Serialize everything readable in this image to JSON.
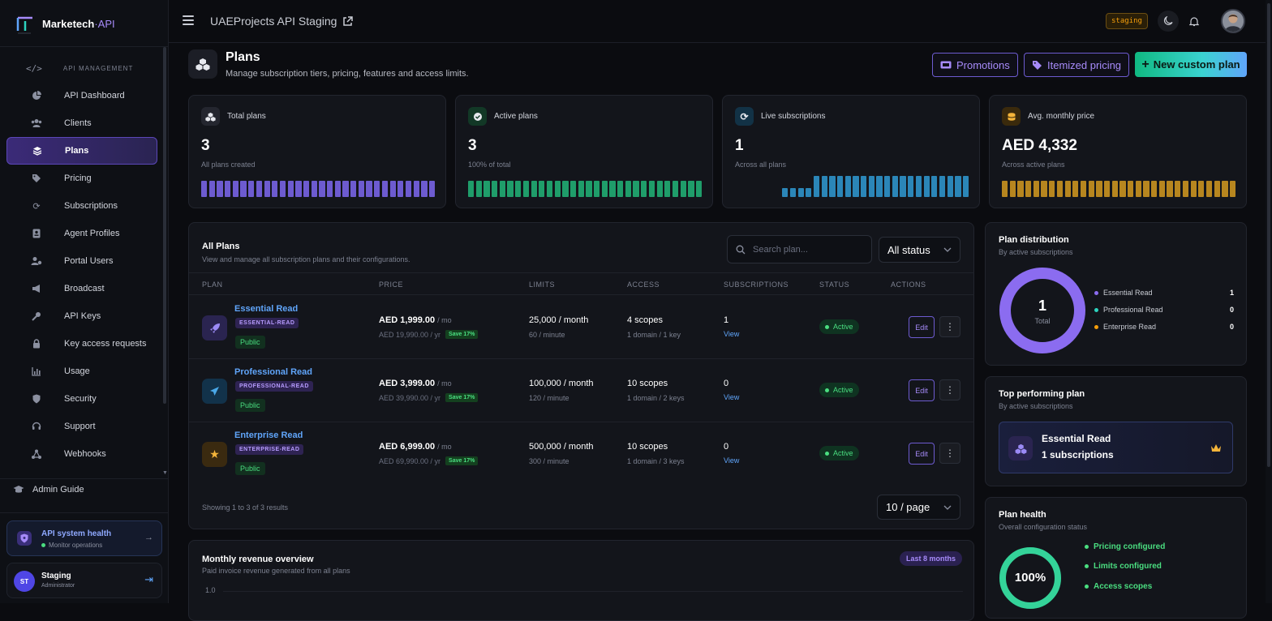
{
  "brand": {
    "name": "Marketech",
    "separator": " · ",
    "api": "API"
  },
  "sidebar": {
    "section_title": "API MANAGEMENT",
    "items": [
      {
        "label": "API Dashboard",
        "icon": "pie-chart-icon"
      },
      {
        "label": "Clients",
        "icon": "users-icon"
      },
      {
        "label": "Plans",
        "icon": "layers-icon",
        "active": true
      },
      {
        "label": "Pricing",
        "icon": "tags-icon"
      },
      {
        "label": "Subscriptions",
        "icon": "refresh-icon"
      },
      {
        "label": "Agent Profiles",
        "icon": "id-card-icon"
      },
      {
        "label": "Portal Users",
        "icon": "user-cog-icon"
      },
      {
        "label": "Broadcast",
        "icon": "megaphone-icon"
      },
      {
        "label": "API Keys",
        "icon": "key-icon"
      },
      {
        "label": "Key access requests",
        "icon": "lock-icon"
      },
      {
        "label": "Usage",
        "icon": "bar-chart-icon"
      },
      {
        "label": "Security",
        "icon": "shield-icon"
      },
      {
        "label": "Support",
        "icon": "headset-icon"
      },
      {
        "label": "Webhooks",
        "icon": "webhook-icon"
      }
    ],
    "admin_guide": "Admin Guide",
    "health": {
      "title": "API system health",
      "subtitle": "Monitor operations"
    },
    "user": {
      "initials": "ST",
      "name": "Staging",
      "role": "Administrator"
    }
  },
  "topbar": {
    "project": "UAEProjects API Staging",
    "env_badge": "staging"
  },
  "page": {
    "title": "Plans",
    "subtitle": "Manage subscription tiers, pricing, features and access limits.",
    "buttons": {
      "promotions": "Promotions",
      "itemized": "Itemized pricing",
      "new_plan": "New custom plan"
    }
  },
  "stats": [
    {
      "label": "Total plans",
      "value": "3",
      "sub": "All plans created",
      "color": "#6d5bd0",
      "icon": "cubes-icon"
    },
    {
      "label": "Active plans",
      "value": "3",
      "sub": "100% of total",
      "color": "#1f9d6a",
      "icon": "check-circle-icon"
    },
    {
      "label": "Live subscriptions",
      "value": "1",
      "sub": "Across all plans",
      "color": "#2b86b8",
      "icon": "refresh-icon"
    },
    {
      "label": "Avg. monthly price",
      "value": "AED 4,332",
      "sub": "Across active plans",
      "color": "#b7861f",
      "icon": "coins-icon"
    }
  ],
  "table": {
    "title": "All Plans",
    "subtitle": "View and manage all subscription plans and their configurations.",
    "search_placeholder": "Search plan...",
    "status_filter": "All status",
    "columns": [
      "PLAN",
      "PRICE",
      "LIMITS",
      "ACCESS",
      "SUBSCRIPTIONS",
      "STATUS",
      "ACTIONS"
    ],
    "rows": [
      {
        "name": "Essential Read",
        "slug": "ESSENTIAL-READ",
        "visibility": "Public",
        "price": "AED 1,999.00",
        "per_mo": "/ mo",
        "yearly": "AED 19,990.00 / yr",
        "save": "Save 17%",
        "limit": "25,000 / month",
        "rate": "60 / minute",
        "scopes": "4 scopes",
        "access": "1 domain / 1 key",
        "subs": "1",
        "view": "View",
        "status": "Active",
        "edit": "Edit",
        "icon": "rocket-icon"
      },
      {
        "name": "Professional Read",
        "slug": "PROFESSIONAL-READ",
        "visibility": "Public",
        "price": "AED 3,999.00",
        "per_mo": "/ mo",
        "yearly": "AED 39,990.00 / yr",
        "save": "Save 17%",
        "limit": "100,000 / month",
        "rate": "120 / minute",
        "scopes": "10 scopes",
        "access": "1 domain / 2 keys",
        "subs": "0",
        "view": "View",
        "status": "Active",
        "edit": "Edit",
        "icon": "paper-plane-icon"
      },
      {
        "name": "Enterprise Read",
        "slug": "ENTERPRISE-READ",
        "visibility": "Public",
        "price": "AED 6,999.00",
        "per_mo": "/ mo",
        "yearly": "AED 69,990.00 / yr",
        "save": "Save 17%",
        "limit": "500,000 / month",
        "rate": "300 / minute",
        "scopes": "10 scopes",
        "access": "1 domain / 3 keys",
        "subs": "0",
        "view": "View",
        "status": "Active",
        "edit": "Edit",
        "icon": "star-icon"
      }
    ],
    "showing": "Showing 1 to 3 of 3 results",
    "page_size": "10 / page"
  },
  "revenue": {
    "title": "Monthly revenue overview",
    "subtitle": "Paid invoice revenue generated from all plans",
    "badge": "Last 8 months",
    "y_top": "1.0"
  },
  "distribution": {
    "title": "Plan distribution",
    "subtitle": "By active subscriptions",
    "total": "1",
    "total_label": "Total",
    "legend": [
      {
        "name": "Essential Read",
        "value": "1",
        "color": "#8b6cf0"
      },
      {
        "name": "Professional Read",
        "value": "0",
        "color": "#2dd4bf"
      },
      {
        "name": "Enterprise Read",
        "value": "0",
        "color": "#f59e0b"
      }
    ]
  },
  "top_plan": {
    "title": "Top performing plan",
    "subtitle": "By active subscriptions",
    "name": "Essential Read",
    "subs": "1 subscriptions"
  },
  "health": {
    "title": "Plan health",
    "subtitle": "Overall configuration status",
    "percent": "100%",
    "percent_value": 100,
    "items": [
      "Pricing configured",
      "Limits configured",
      "Access scopes"
    ]
  }
}
